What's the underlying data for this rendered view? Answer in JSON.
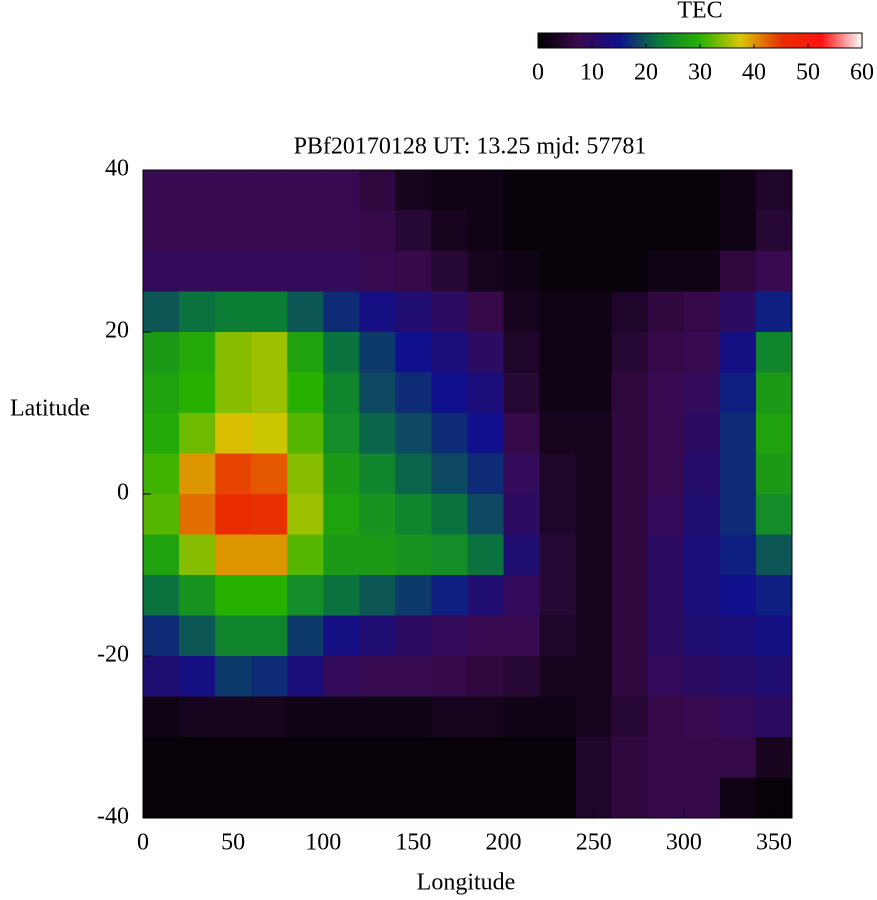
{
  "chart_data": {
    "type": "heatmap",
    "title": "PBf20170128  UT: 13.25  mjd: 57781",
    "xlabel": "Longitude",
    "ylabel": "Latitude",
    "colorbar_label": "TEC",
    "x": [
      10,
      30,
      50,
      70,
      90,
      110,
      130,
      150,
      170,
      190,
      210,
      230,
      250,
      270,
      290,
      310,
      330,
      350
    ],
    "y": [
      37.5,
      32.5,
      27.5,
      22.5,
      17.5,
      12.5,
      7.5,
      2.5,
      -2.5,
      -7.5,
      -12.5,
      -17.5,
      -22.5,
      -27.5,
      -32.5,
      -37.5
    ],
    "z": [
      [
        8,
        8,
        8,
        8,
        8,
        8,
        6,
        3,
        2,
        2,
        1,
        1,
        1,
        1,
        1,
        1,
        2,
        4
      ],
      [
        8,
        8,
        8,
        8,
        8,
        8,
        7,
        5,
        3,
        2,
        1,
        1,
        1,
        1,
        1,
        1,
        2,
        5
      ],
      [
        9,
        9,
        9,
        9,
        9,
        9,
        8,
        7,
        5,
        3,
        2,
        1,
        1,
        1,
        2,
        2,
        6,
        8
      ],
      [
        20,
        22,
        23,
        23,
        20,
        17,
        14,
        12,
        10,
        7,
        3,
        2,
        2,
        4,
        6,
        7,
        10,
        16
      ],
      [
        27,
        29,
        34,
        35,
        28,
        22,
        18,
        15,
        13,
        10,
        4,
        2,
        2,
        5,
        7,
        8,
        14,
        24
      ],
      [
        28,
        30,
        34,
        35,
        30,
        24,
        19,
        17,
        15,
        13,
        5,
        2,
        2,
        6,
        8,
        9,
        16,
        27
      ],
      [
        29,
        33,
        38,
        37,
        32,
        25,
        21,
        19,
        17,
        15,
        7,
        3,
        3,
        6,
        8,
        10,
        17,
        28
      ],
      [
        31,
        40,
        44,
        43,
        34,
        27,
        24,
        21,
        19,
        17,
        9,
        4,
        3,
        6,
        8,
        11,
        17,
        27
      ],
      [
        32,
        42,
        46,
        45,
        35,
        28,
        26,
        24,
        22,
        19,
        10,
        4,
        3,
        6,
        9,
        12,
        17,
        25
      ],
      [
        28,
        34,
        40,
        40,
        32,
        27,
        27,
        26,
        25,
        22,
        12,
        5,
        3,
        6,
        10,
        13,
        16,
        20
      ],
      [
        22,
        26,
        30,
        30,
        25,
        22,
        20,
        18,
        16,
        12,
        9,
        5,
        3,
        6,
        10,
        13,
        15,
        16
      ],
      [
        17,
        20,
        24,
        24,
        18,
        14,
        12,
        10,
        9,
        8,
        8,
        4,
        3,
        6,
        10,
        12,
        13,
        14
      ],
      [
        12,
        14,
        18,
        17,
        13,
        9,
        8,
        8,
        7,
        6,
        5,
        3,
        3,
        6,
        9,
        10,
        11,
        12
      ],
      [
        2,
        3,
        3,
        3,
        2,
        2,
        2,
        2,
        3,
        3,
        2,
        2,
        3,
        5,
        7,
        8,
        9,
        10
      ],
      [
        1,
        1,
        1,
        1,
        1,
        1,
        1,
        1,
        1,
        1,
        1,
        1,
        4,
        6,
        7,
        7,
        7,
        3
      ],
      [
        1,
        1,
        1,
        1,
        1,
        1,
        1,
        1,
        1,
        1,
        1,
        1,
        4,
        6,
        7,
        7,
        2,
        1
      ]
    ],
    "xlim": [
      0,
      360
    ],
    "ylim": [
      -40,
      40
    ],
    "xticks": [
      0,
      50,
      100,
      150,
      200,
      250,
      300,
      350
    ],
    "yticks": [
      -40,
      -20,
      0,
      20,
      40
    ],
    "zlim": [
      0,
      60
    ],
    "zticks": [
      0,
      10,
      20,
      30,
      40,
      50,
      60
    ],
    "colors": [
      "#000000",
      "#3a0a4e",
      "#10108c",
      "#0a7a3a",
      "#28b000",
      "#d8c800",
      "#e83000",
      "#ff1010",
      "#ffffff"
    ]
  }
}
